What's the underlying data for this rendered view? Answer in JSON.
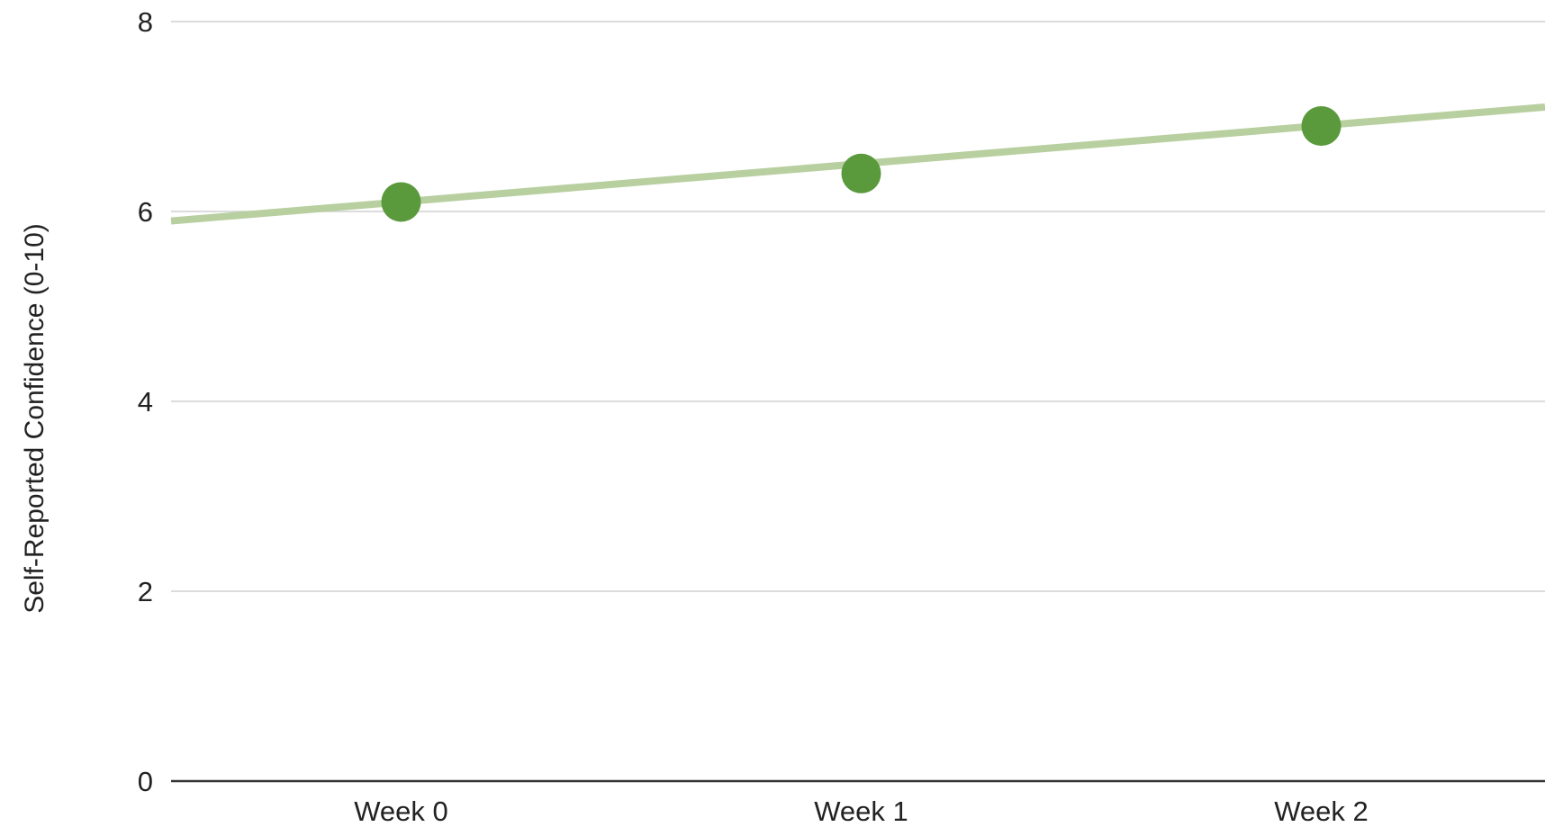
{
  "chart_data": {
    "type": "scatter",
    "title": "",
    "xlabel": "",
    "ylabel": "Self-Reported Confidence (0-10)",
    "categories": [
      "Week 0",
      "Week 1",
      "Week 2"
    ],
    "series": [
      {
        "values": [
          6.1,
          6.4,
          6.9
        ]
      }
    ],
    "trendline": {
      "type": "linear",
      "start": 5.9,
      "end": 7.1
    },
    "ylim": [
      0,
      8
    ],
    "yticks": [
      "0",
      "2",
      "4",
      "6",
      "8"
    ],
    "grid": true,
    "legend": "none",
    "colors": {
      "point": "#5a9a3c",
      "trendline": "#b8cfa0",
      "grid": "#d0d0d0",
      "baseline": "#333333"
    }
  }
}
